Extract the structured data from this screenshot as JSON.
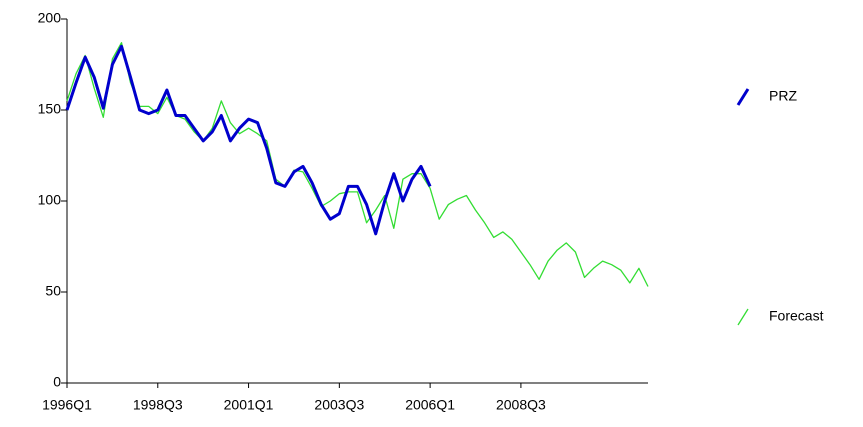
{
  "chart_data": {
    "type": "line",
    "categories": [
      "1996Q1",
      null,
      null,
      null,
      null,
      null,
      null,
      null,
      null,
      null,
      "1998Q3",
      null,
      null,
      null,
      null,
      null,
      null,
      null,
      null,
      null,
      "2001Q1",
      null,
      null,
      null,
      null,
      null,
      null,
      null,
      null,
      null,
      "2003Q3",
      null,
      null,
      null,
      null,
      null,
      null,
      null,
      null,
      null,
      "2006Q1",
      null,
      null,
      null,
      null,
      null,
      null,
      null,
      null,
      null,
      "2008Q3",
      null,
      null,
      null,
      null,
      null,
      null,
      null,
      null,
      null,
      null,
      null,
      null,
      null,
      null
    ],
    "series": [
      {
        "name": "PRZ",
        "color": "#0000cc",
        "values": [
          150,
          165,
          179,
          168,
          151,
          175,
          185,
          168,
          150,
          148,
          150,
          161,
          147,
          147,
          140,
          133,
          138,
          147,
          133,
          140,
          145,
          143,
          129,
          110,
          108,
          116,
          119,
          110,
          98,
          90,
          93,
          108,
          108,
          98,
          82,
          100,
          115,
          100,
          112,
          119,
          108,
          null,
          null,
          null,
          null,
          null,
          null,
          null,
          null,
          null,
          null,
          null,
          null,
          null,
          null,
          null,
          null,
          null,
          null,
          null,
          null,
          null,
          null,
          null,
          null
        ]
      },
      {
        "name": "Forecast",
        "color": "#33dd33",
        "values": [
          155,
          170,
          180,
          162,
          146,
          178,
          187,
          165,
          152,
          152,
          148,
          157,
          147,
          145,
          138,
          133,
          140,
          155,
          143,
          137,
          140,
          137,
          133,
          112,
          108,
          117,
          116,
          107,
          97,
          100,
          104,
          105,
          105,
          88,
          95,
          103,
          85,
          112,
          115,
          115,
          107,
          90,
          98,
          101,
          103,
          95,
          88,
          80,
          83,
          79,
          72,
          65,
          57,
          67,
          73,
          77,
          72,
          58,
          63,
          67,
          65,
          62,
          55,
          63,
          53
        ]
      }
    ],
    "ylim": [
      0,
      200
    ],
    "yticks": [
      0,
      50,
      100,
      150,
      200
    ],
    "legend": "right"
  }
}
